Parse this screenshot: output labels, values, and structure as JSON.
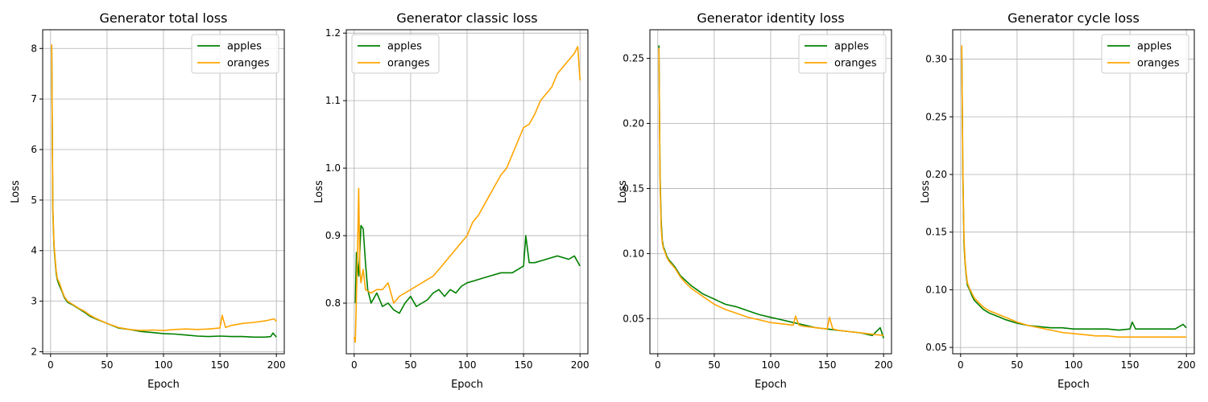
{
  "colors": {
    "apples": "#008000",
    "oranges": "#ffa500",
    "grid": "#b0b0b0"
  },
  "chart_data": [
    {
      "type": "line",
      "title": "Generator total loss",
      "xlabel": "Epoch",
      "ylabel": "Loss",
      "xlim": [
        -7,
        207
      ],
      "ylim": [
        1.96,
        8.37
      ],
      "xticks": [
        0,
        50,
        100,
        150,
        200
      ],
      "yticks": [
        2,
        3,
        4,
        5,
        6,
        7,
        8
      ],
      "ytick_labels": [
        "2",
        "3",
        "4",
        "5",
        "6",
        "7",
        "8"
      ],
      "grid": true,
      "legend_position": "top-right",
      "legend": [
        "apples",
        "oranges"
      ],
      "series": [
        {
          "name": "apples",
          "color": "#008000",
          "x": [
            1,
            2,
            3,
            4,
            5,
            6,
            8,
            10,
            12,
            15,
            20,
            25,
            30,
            35,
            40,
            50,
            60,
            70,
            80,
            90,
            100,
            110,
            120,
            130,
            140,
            150,
            160,
            170,
            180,
            190,
            195,
            197,
            200
          ],
          "y": [
            8.05,
            4.8,
            4.1,
            3.8,
            3.55,
            3.42,
            3.3,
            3.2,
            3.08,
            2.98,
            2.92,
            2.85,
            2.78,
            2.7,
            2.65,
            2.56,
            2.47,
            2.44,
            2.4,
            2.38,
            2.36,
            2.35,
            2.33,
            2.31,
            2.3,
            2.31,
            2.3,
            2.3,
            2.29,
            2.29,
            2.3,
            2.37,
            2.29
          ]
        },
        {
          "name": "oranges",
          "color": "#ffa500",
          "x": [
            1,
            2,
            3,
            4,
            5,
            6,
            8,
            10,
            12,
            15,
            20,
            25,
            30,
            35,
            40,
            50,
            60,
            70,
            80,
            90,
            100,
            110,
            120,
            130,
            140,
            150,
            152,
            155,
            160,
            170,
            180,
            190,
            198,
            200
          ],
          "y": [
            8.08,
            4.9,
            4.15,
            3.85,
            3.6,
            3.45,
            3.35,
            3.22,
            3.1,
            3.0,
            2.93,
            2.86,
            2.8,
            2.72,
            2.66,
            2.56,
            2.48,
            2.44,
            2.42,
            2.43,
            2.42,
            2.44,
            2.45,
            2.44,
            2.45,
            2.47,
            2.72,
            2.48,
            2.52,
            2.56,
            2.58,
            2.61,
            2.65,
            2.6
          ]
        }
      ]
    },
    {
      "type": "line",
      "title": "Generator classic loss",
      "xlabel": "Epoch",
      "ylabel": "Loss",
      "xlim": [
        -7,
        207
      ],
      "ylim": [
        0.725,
        1.205
      ],
      "xticks": [
        0,
        50,
        100,
        150,
        200
      ],
      "yticks": [
        0.8,
        0.9,
        1.0,
        1.1,
        1.2
      ],
      "ytick_labels": [
        "0.8",
        "0.9",
        "1.0",
        "1.1",
        "1.2"
      ],
      "grid": true,
      "legend_position": "top-left",
      "legend": [
        "apples",
        "oranges"
      ],
      "series": [
        {
          "name": "apples",
          "color": "#008000",
          "x": [
            1,
            2,
            4,
            6,
            8,
            10,
            12,
            15,
            20,
            25,
            30,
            35,
            40,
            45,
            50,
            55,
            60,
            65,
            70,
            75,
            80,
            85,
            90,
            95,
            100,
            110,
            120,
            130,
            140,
            150,
            152,
            155,
            160,
            170,
            180,
            190,
            195,
            200
          ],
          "y": [
            0.8,
            0.875,
            0.84,
            0.915,
            0.91,
            0.86,
            0.82,
            0.8,
            0.815,
            0.795,
            0.8,
            0.79,
            0.785,
            0.8,
            0.81,
            0.795,
            0.8,
            0.805,
            0.815,
            0.82,
            0.81,
            0.82,
            0.815,
            0.825,
            0.83,
            0.835,
            0.84,
            0.845,
            0.845,
            0.855,
            0.9,
            0.86,
            0.86,
            0.865,
            0.87,
            0.865,
            0.87,
            0.855
          ]
        },
        {
          "name": "oranges",
          "color": "#ffa500",
          "x": [
            0,
            1,
            3,
            4,
            5,
            6,
            8,
            10,
            15,
            20,
            25,
            30,
            35,
            40,
            45,
            50,
            55,
            60,
            65,
            70,
            75,
            80,
            85,
            90,
            95,
            100,
            105,
            110,
            115,
            120,
            125,
            130,
            135,
            140,
            145,
            150,
            155,
            160,
            165,
            170,
            175,
            180,
            185,
            190,
            195,
            198,
            200
          ],
          "y": [
            0.75,
            0.742,
            0.88,
            0.97,
            0.85,
            0.83,
            0.85,
            0.82,
            0.815,
            0.82,
            0.82,
            0.83,
            0.8,
            0.81,
            0.815,
            0.82,
            0.825,
            0.83,
            0.835,
            0.84,
            0.85,
            0.86,
            0.87,
            0.88,
            0.89,
            0.9,
            0.92,
            0.93,
            0.945,
            0.96,
            0.975,
            0.99,
            1.0,
            1.02,
            1.04,
            1.06,
            1.065,
            1.08,
            1.1,
            1.11,
            1.12,
            1.14,
            1.15,
            1.16,
            1.17,
            1.18,
            1.13
          ]
        }
      ]
    },
    {
      "type": "line",
      "title": "Generator identity loss",
      "xlabel": "Epoch",
      "ylabel": "Loss",
      "xlim": [
        -7,
        207
      ],
      "ylim": [
        0.023,
        0.272
      ],
      "xticks": [
        0,
        50,
        100,
        150,
        200
      ],
      "yticks": [
        0.05,
        0.1,
        0.15,
        0.2,
        0.25
      ],
      "ytick_labels": [
        "0.05",
        "0.10",
        "0.15",
        "0.20",
        "0.25"
      ],
      "grid": true,
      "legend_position": "top-right",
      "legend": [
        "apples",
        "oranges"
      ],
      "series": [
        {
          "name": "apples",
          "color": "#008000",
          "x": [
            1,
            2,
            3,
            4,
            5,
            6,
            8,
            10,
            12,
            15,
            20,
            25,
            30,
            35,
            40,
            45,
            50,
            55,
            60,
            70,
            80,
            90,
            100,
            110,
            120,
            130,
            140,
            150,
            160,
            170,
            180,
            190,
            197,
            200
          ],
          "y": [
            0.26,
            0.16,
            0.125,
            0.11,
            0.105,
            0.103,
            0.098,
            0.095,
            0.093,
            0.09,
            0.083,
            0.079,
            0.075,
            0.072,
            0.069,
            0.067,
            0.065,
            0.063,
            0.061,
            0.059,
            0.056,
            0.053,
            0.051,
            0.049,
            0.047,
            0.045,
            0.043,
            0.042,
            0.041,
            0.04,
            0.039,
            0.037,
            0.043,
            0.035
          ]
        },
        {
          "name": "oranges",
          "color": "#ffa500",
          "x": [
            1,
            2,
            3,
            4,
            5,
            6,
            8,
            10,
            12,
            15,
            20,
            25,
            30,
            35,
            40,
            45,
            50,
            55,
            60,
            70,
            80,
            90,
            100,
            110,
            120,
            122,
            125,
            130,
            140,
            150,
            152,
            155,
            160,
            170,
            180,
            190,
            200
          ],
          "y": [
            0.258,
            0.155,
            0.12,
            0.108,
            0.104,
            0.102,
            0.097,
            0.094,
            0.092,
            0.089,
            0.082,
            0.077,
            0.073,
            0.07,
            0.067,
            0.064,
            0.061,
            0.059,
            0.057,
            0.054,
            0.051,
            0.049,
            0.047,
            0.046,
            0.045,
            0.052,
            0.045,
            0.044,
            0.043,
            0.042,
            0.051,
            0.042,
            0.041,
            0.04,
            0.039,
            0.038,
            0.037
          ]
        }
      ]
    },
    {
      "type": "line",
      "title": "Generator cycle loss",
      "xlabel": "Epoch",
      "ylabel": "Loss",
      "xlim": [
        -7,
        207
      ],
      "ylim": [
        0.0445,
        0.3255
      ],
      "xticks": [
        0,
        50,
        100,
        150,
        200
      ],
      "yticks": [
        0.05,
        0.1,
        0.15,
        0.2,
        0.25,
        0.3
      ],
      "ytick_labels": [
        "0.05",
        "0.10",
        "0.15",
        "0.20",
        "0.25",
        "0.30"
      ],
      "grid": true,
      "legend_position": "top-right",
      "legend": [
        "apples",
        "oranges"
      ],
      "series": [
        {
          "name": "apples",
          "color": "#008000",
          "x": [
            1,
            2,
            3,
            4,
            5,
            6,
            8,
            10,
            12,
            15,
            20,
            25,
            30,
            35,
            40,
            50,
            60,
            70,
            80,
            90,
            100,
            110,
            120,
            130,
            140,
            150,
            152,
            155,
            160,
            170,
            180,
            190,
            197,
            200
          ],
          "y": [
            0.31,
            0.2,
            0.14,
            0.123,
            0.112,
            0.104,
            0.1,
            0.095,
            0.091,
            0.088,
            0.083,
            0.08,
            0.078,
            0.076,
            0.074,
            0.071,
            0.069,
            0.068,
            0.067,
            0.067,
            0.066,
            0.066,
            0.066,
            0.066,
            0.065,
            0.066,
            0.072,
            0.066,
            0.066,
            0.066,
            0.066,
            0.066,
            0.07,
            0.067
          ]
        },
        {
          "name": "oranges",
          "color": "#ffa500",
          "x": [
            1,
            2,
            3,
            4,
            5,
            6,
            8,
            10,
            12,
            15,
            20,
            25,
            30,
            35,
            40,
            50,
            60,
            70,
            80,
            90,
            100,
            110,
            120,
            130,
            140,
            150,
            160,
            170,
            180,
            190,
            200
          ],
          "y": [
            0.312,
            0.205,
            0.145,
            0.125,
            0.114,
            0.106,
            0.101,
            0.097,
            0.093,
            0.09,
            0.085,
            0.082,
            0.08,
            0.078,
            0.076,
            0.072,
            0.069,
            0.067,
            0.065,
            0.063,
            0.062,
            0.061,
            0.06,
            0.06,
            0.059,
            0.059,
            0.059,
            0.059,
            0.059,
            0.059,
            0.059
          ]
        }
      ]
    }
  ]
}
